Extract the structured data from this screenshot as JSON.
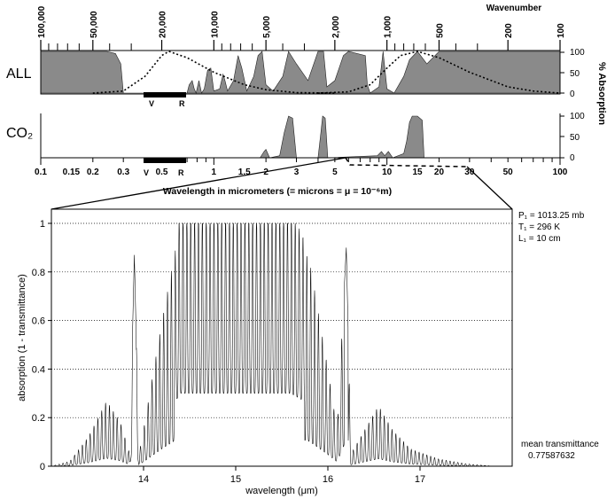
{
  "chart_data": [
    {
      "type": "area",
      "panel": "ALL",
      "label": "ALL",
      "x_scale": "log",
      "x_unit": "micrometers",
      "xlim": [
        0.1,
        100
      ],
      "ylim": [
        0,
        100
      ],
      "y_ticks": [
        "0",
        "50",
        "100"
      ],
      "top_axis_label": "Wavenumber",
      "top_axis_ticks": [
        "100,000",
        "50,000",
        "20,000",
        "10,000",
        "5,000",
        "2,000",
        "1,000",
        "500",
        "200",
        "100"
      ],
      "band_markers": [
        "V",
        "R"
      ],
      "series": [
        {
          "values": [
            [
              0.1,
              100
            ],
            [
              0.22,
              100
            ],
            [
              0.24,
              100
            ],
            [
              0.27,
              95
            ],
            [
              0.29,
              70
            ],
            [
              0.3,
              0
            ],
            [
              0.7,
              0
            ],
            [
              0.72,
              20
            ],
            [
              0.75,
              30
            ],
            [
              0.77,
              10
            ],
            [
              0.79,
              0
            ],
            [
              0.82,
              30
            ],
            [
              0.85,
              0
            ],
            [
              0.88,
              10
            ],
            [
              0.92,
              55
            ],
            [
              0.96,
              60
            ],
            [
              1.0,
              5
            ],
            [
              1.08,
              10
            ],
            [
              1.13,
              45
            ],
            [
              1.16,
              30
            ],
            [
              1.2,
              5
            ],
            [
              1.3,
              30
            ],
            [
              1.38,
              90
            ],
            [
              1.45,
              60
            ],
            [
              1.55,
              5
            ],
            [
              1.7,
              40
            ],
            [
              1.8,
              90
            ],
            [
              1.9,
              100
            ],
            [
              2.0,
              20
            ],
            [
              2.2,
              5
            ],
            [
              2.5,
              40
            ],
            [
              2.7,
              100
            ],
            [
              3.0,
              70
            ],
            [
              3.5,
              30
            ],
            [
              4.0,
              100
            ],
            [
              4.3,
              100
            ],
            [
              4.5,
              15
            ],
            [
              5.0,
              30
            ],
            [
              5.6,
              90
            ],
            [
              6.0,
              100
            ],
            [
              7.5,
              90
            ],
            [
              7.7,
              20
            ],
            [
              8.0,
              0
            ],
            [
              9.0,
              15
            ],
            [
              9.5,
              100
            ],
            [
              10.0,
              10
            ],
            [
              11.0,
              0
            ],
            [
              12.5,
              40
            ],
            [
              13.5,
              80
            ],
            [
              15.0,
              100
            ],
            [
              17.0,
              70
            ],
            [
              20.0,
              100
            ],
            [
              100,
              100
            ]
          ]
        }
      ]
    },
    {
      "type": "line",
      "panel": "ALL",
      "series": [
        {
          "name": "",
          "values": [
            [
              0.2,
              0
            ],
            [
              0.3,
              5
            ],
            [
              0.4,
              40
            ],
            [
              0.5,
              90
            ],
            [
              0.55,
              100
            ],
            [
              0.7,
              85
            ],
            [
              1.0,
              50
            ],
            [
              1.5,
              20
            ],
            [
              2.0,
              8
            ],
            [
              3.0,
              1
            ],
            [
              5.0,
              0
            ]
          ]
        },
        {
          "name": "",
          "values": [
            [
              4,
              0
            ],
            [
              6,
              3
            ],
            [
              8,
              20
            ],
            [
              10,
              60
            ],
            [
              12,
              90
            ],
            [
              15,
              100
            ],
            [
              20,
              85
            ],
            [
              30,
              50
            ],
            [
              50,
              15
            ],
            [
              70,
              5
            ],
            [
              100,
              0
            ]
          ]
        }
      ]
    },
    {
      "type": "area",
      "panel": "CO2",
      "label": "CO₂",
      "x_scale": "log",
      "xlim": [
        0.1,
        100
      ],
      "ylim": [
        0,
        100
      ],
      "y_ticks": [
        "0",
        "50",
        "100"
      ],
      "y_axis_label": "% Absorption",
      "x_ticks": [
        "0.1",
        "0.15",
        "0.2",
        "0.3",
        "0.5",
        "1",
        "1.5",
        "2",
        "3",
        "5",
        "10",
        "15",
        "20",
        "30",
        "50",
        "100"
      ],
      "x_label": "Wavelength in micrometers (= microns = μ = 10⁻⁶m)",
      "band_markers": [
        "V",
        "R"
      ],
      "series": [
        {
          "values": [
            [
              0.1,
              0
            ],
            [
              1.85,
              0
            ],
            [
              1.95,
              15
            ],
            [
              2.0,
              20
            ],
            [
              2.05,
              10
            ],
            [
              2.1,
              0
            ],
            [
              2.4,
              5
            ],
            [
              2.55,
              60
            ],
            [
              2.7,
              100
            ],
            [
              2.85,
              95
            ],
            [
              3.0,
              0
            ],
            [
              4.0,
              0
            ],
            [
              4.15,
              60
            ],
            [
              4.25,
              100
            ],
            [
              4.4,
              95
            ],
            [
              4.55,
              0
            ],
            [
              8.8,
              5
            ],
            [
              9.3,
              15
            ],
            [
              9.7,
              5
            ],
            [
              10.2,
              15
            ],
            [
              10.8,
              0
            ],
            [
              12.5,
              10
            ],
            [
              13.0,
              40
            ],
            [
              13.5,
              85
            ],
            [
              14.0,
              100
            ],
            [
              15.0,
              100
            ],
            [
              16.0,
              90
            ],
            [
              16.4,
              0
            ],
            [
              100,
              0
            ]
          ]
        }
      ]
    },
    {
      "type": "line",
      "panel": "CO2 15 μm band detail",
      "xlim": [
        13,
        18
      ],
      "ylim": [
        0,
        1
      ],
      "x_ticks": [
        "14",
        "15",
        "16",
        "17"
      ],
      "y_ticks": [
        "0",
        "0.2",
        "0.4",
        "0.6",
        "0.8",
        "1"
      ],
      "xlabel": "wavelength (μm)",
      "ylabel": "absorption (1 - transmittance)",
      "conditions": [
        "P₁ = 1013.25 mb",
        "T₁ = 296 K",
        "L₁ = 10 cm"
      ],
      "mean_transmittance_label": "mean transmittance",
      "mean_transmittance": "0.77587632",
      "envelope": {
        "x": [
          13.0,
          13.2,
          13.4,
          13.6,
          13.75,
          13.85,
          13.9,
          13.95,
          14.0,
          14.2,
          14.4,
          14.6,
          14.8,
          14.9,
          15.0,
          15.1,
          15.2,
          15.4,
          15.6,
          15.8,
          16.0,
          16.1,
          16.2,
          16.25,
          16.4,
          16.55,
          16.7,
          16.9,
          17.2,
          17.5,
          17.8,
          18.0
        ],
        "y": [
          0.0,
          0.02,
          0.12,
          0.27,
          0.18,
          0.05,
          0.87,
          0.05,
          0.15,
          0.6,
          1.0,
          1.0,
          1.0,
          1.0,
          1.0,
          1.0,
          1.0,
          1.0,
          1.0,
          0.85,
          0.4,
          0.15,
          0.9,
          0.05,
          0.15,
          0.25,
          0.15,
          0.07,
          0.03,
          0.01,
          0.0,
          0.0
        ]
      }
    }
  ]
}
